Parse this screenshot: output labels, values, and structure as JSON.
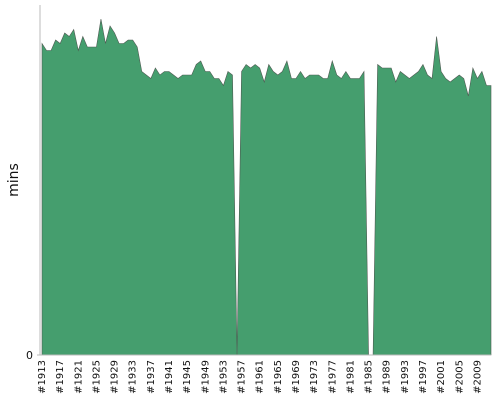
{
  "chart_data": {
    "type": "area",
    "y_label": "mins",
    "color": "#459e6e",
    "edge_color": "#4f5a52",
    "categories": [
      "#1913",
      null,
      null,
      null,
      "#1917",
      null,
      null,
      null,
      "#1921",
      null,
      null,
      null,
      "#1925",
      null,
      null,
      null,
      "#1929",
      null,
      null,
      null,
      "#1933",
      null,
      null,
      null,
      "#1937",
      null,
      null,
      null,
      "#1941",
      null,
      null,
      null,
      "#1945",
      null,
      null,
      null,
      "#1949",
      null,
      null,
      null,
      "#1953",
      null,
      null,
      null,
      "#1957",
      null,
      null,
      null,
      "#1961",
      null,
      null,
      null,
      "#1965",
      null,
      null,
      null,
      "#1969",
      null,
      null,
      null,
      "#1973",
      null,
      null,
      null,
      "#1977",
      null,
      null,
      null,
      "#1981",
      null,
      null,
      null,
      "#1985",
      null,
      null,
      null,
      "#1989",
      null,
      null,
      null,
      "#1993",
      null,
      null,
      null,
      "#1997",
      null,
      null,
      null,
      "#2001",
      null,
      null,
      null,
      "#2005",
      null,
      null,
      null,
      "#2009",
      null,
      null,
      null
    ],
    "values": [
      89,
      87,
      87,
      90,
      89,
      92,
      91,
      93,
      87,
      91,
      88,
      88,
      88,
      96,
      89,
      94,
      92,
      89,
      89,
      90,
      90,
      88,
      81,
      80,
      79,
      82,
      80,
      81,
      81,
      80,
      79,
      80,
      80,
      80,
      83,
      84,
      81,
      81,
      79,
      79,
      77,
      81,
      80,
      0,
      81,
      83,
      82,
      83,
      82,
      78,
      83,
      81,
      80,
      81,
      84,
      79,
      79,
      81,
      79,
      80,
      80,
      80,
      79,
      79,
      84,
      80,
      79,
      81,
      79,
      79,
      79,
      81,
      0,
      0,
      83,
      82,
      82,
      82,
      78,
      81,
      80,
      79,
      80,
      81,
      83,
      80,
      79,
      91,
      81,
      79,
      78,
      79,
      80,
      79,
      74,
      82,
      79,
      81,
      77,
      77
    ],
    "ylim": [
      0,
      100
    ],
    "yticks": [
      0
    ]
  }
}
